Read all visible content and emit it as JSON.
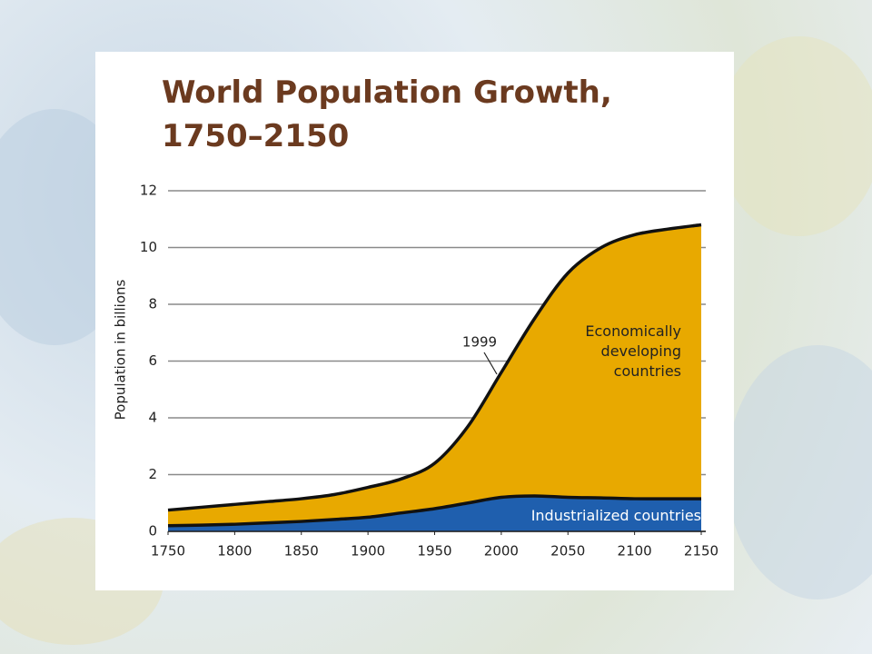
{
  "chart_data": {
    "type": "stacked_area",
    "title": "World Population Growth, 1750–2150",
    "ylabel": "Population in billions",
    "x": [
      1750,
      1775,
      1800,
      1825,
      1850,
      1875,
      1900,
      1925,
      1950,
      1975,
      2000,
      2025,
      2050,
      2075,
      2100,
      2125,
      2150
    ],
    "series": [
      {
        "name": "Industrialized countries",
        "color": "#1f5fae",
        "values": [
          0.2,
          0.22,
          0.25,
          0.3,
          0.35,
          0.42,
          0.5,
          0.65,
          0.8,
          1.0,
          1.2,
          1.25,
          1.2,
          1.18,
          1.15,
          1.15,
          1.15
        ]
      },
      {
        "name": "Economically developing countries",
        "color": "#e8a900",
        "values": [
          0.55,
          0.63,
          0.7,
          0.75,
          0.8,
          0.88,
          1.05,
          1.2,
          1.6,
          2.7,
          4.4,
          6.25,
          7.9,
          8.82,
          9.3,
          9.5,
          9.65
        ]
      }
    ],
    "annotations": [
      "1999"
    ],
    "xlim": [
      1750,
      2150
    ],
    "xticks": [
      1750,
      1800,
      1850,
      1900,
      1950,
      2000,
      2050,
      2100,
      2150
    ],
    "ylim": [
      0,
      12
    ],
    "yticks": [
      0,
      2,
      4,
      6,
      8,
      10,
      12
    ],
    "grid": true
  }
}
